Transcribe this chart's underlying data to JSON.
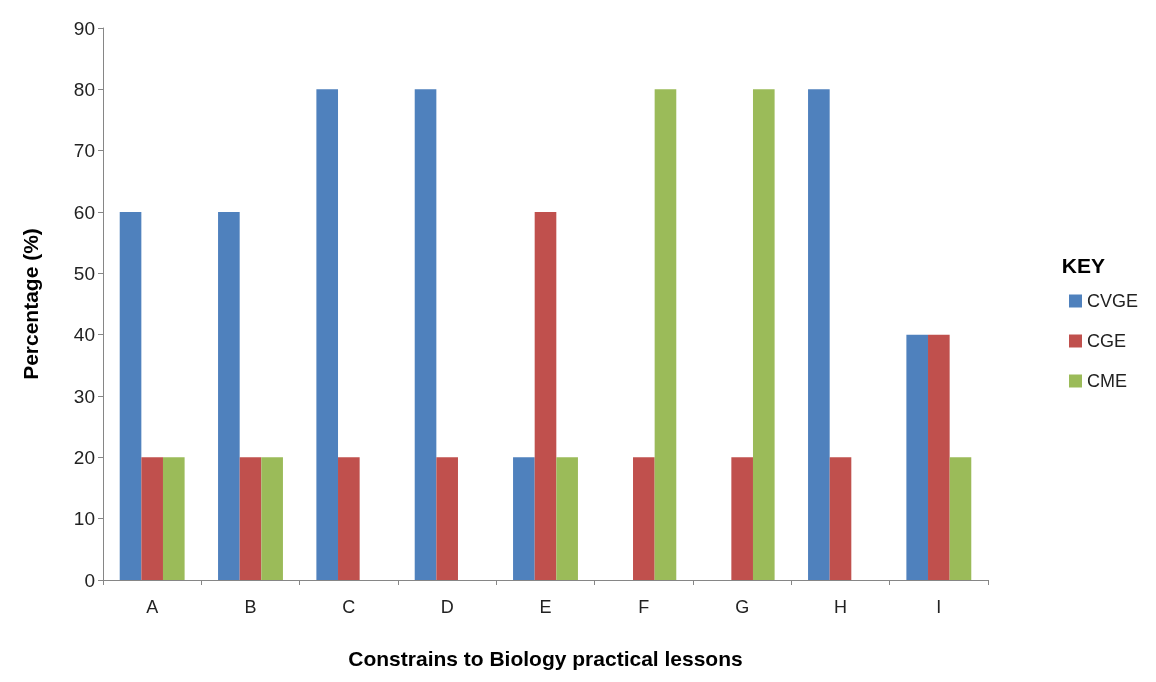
{
  "chart_data": {
    "type": "bar",
    "xlabel": "Constrains to Biology practical lessons",
    "ylabel": "Percentage (%)",
    "legend_title": "KEY",
    "categories": [
      "A",
      "B",
      "C",
      "D",
      "E",
      "F",
      "G",
      "H",
      "I"
    ],
    "series": [
      {
        "name": "CVGE",
        "color": "#4f81bd",
        "values": [
          60,
          60,
          80,
          80,
          20,
          0,
          0,
          80,
          40
        ]
      },
      {
        "name": "CGE",
        "color": "#c0504d",
        "values": [
          20,
          20,
          20,
          20,
          60,
          20,
          20,
          20,
          40
        ]
      },
      {
        "name": "CME",
        "color": "#9bbb59",
        "values": [
          20,
          20,
          0,
          0,
          20,
          80,
          80,
          0,
          20
        ]
      }
    ],
    "ylim": [
      0,
      90
    ],
    "yticks": [
      0,
      10,
      20,
      30,
      40,
      50,
      60,
      70,
      80,
      90
    ],
    "grid": false,
    "legend": "right"
  }
}
